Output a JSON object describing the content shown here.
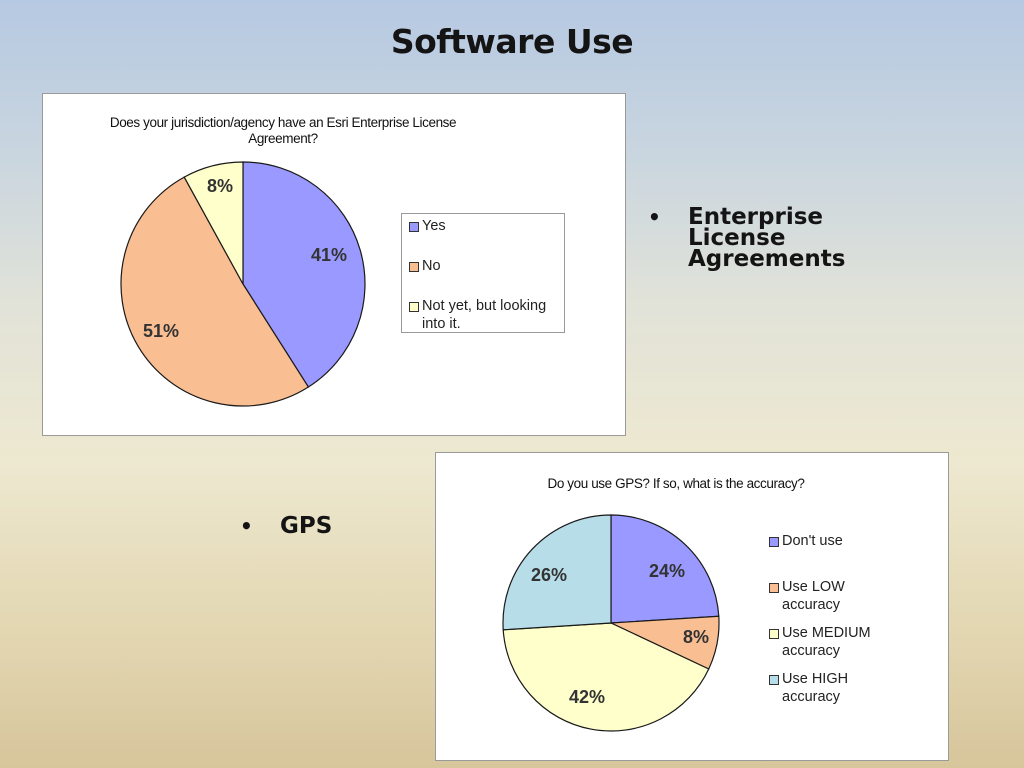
{
  "slide": {
    "title": "Software Use",
    "bullet_1": "Enterprise License Agreements",
    "bullet_2": "GPS",
    "bullet_symbol": "•"
  },
  "chart_data": [
    {
      "type": "pie",
      "title": "Does your jurisdiction/agency have an Esri Enterprise License Agreement?",
      "categories": [
        "Yes",
        "No",
        "Not yet, but looking into it."
      ],
      "values": [
        41,
        51,
        8
      ],
      "value_labels": [
        "41%",
        "51%",
        "8%"
      ],
      "colors": [
        "#9999ff",
        "#f9bf93",
        "#ffffcc"
      ],
      "legend_position": "right"
    },
    {
      "type": "pie",
      "title": "Do you use GPS?  If so, what is the accuracy?",
      "categories": [
        "Don't use",
        "Use LOW accuracy",
        "Use MEDIUM accuracy",
        "Use HIGH accuracy"
      ],
      "values": [
        24,
        8,
        42,
        26
      ],
      "value_labels": [
        "24%",
        "8%",
        "42%",
        "26%"
      ],
      "colors": [
        "#9999ff",
        "#f9bf93",
        "#ffffcc",
        "#b7dde8"
      ],
      "legend_position": "right"
    }
  ]
}
